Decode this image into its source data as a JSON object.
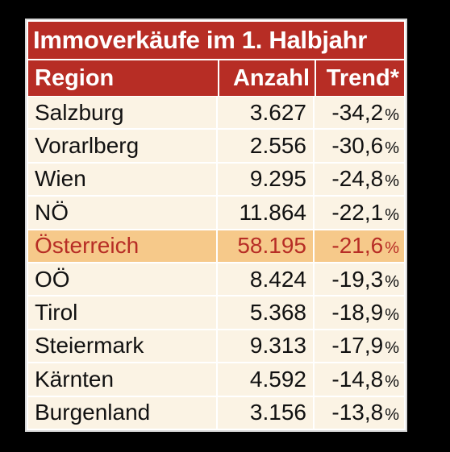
{
  "chart_data": {
    "type": "table",
    "title": "Immoverkäufe im 1. Halbjahr",
    "columns": [
      "Region",
      "Anzahl",
      "Trend*"
    ],
    "rows": [
      {
        "region": "Salzburg",
        "anzahl": "3.627",
        "trend": "-34,2",
        "unit": "%"
      },
      {
        "region": "Vorarlberg",
        "anzahl": "2.556",
        "trend": "-30,6",
        "unit": "%"
      },
      {
        "region": "Wien",
        "anzahl": "9.295",
        "trend": "-24,8",
        "unit": "%"
      },
      {
        "region": "NÖ",
        "anzahl": "11.864",
        "trend": "-22,1",
        "unit": "%"
      },
      {
        "region": "Österreich",
        "anzahl": "58.195",
        "trend": "-21,6",
        "unit": "%",
        "highlight": true
      },
      {
        "region": "OÖ",
        "anzahl": "8.424",
        "trend": "-19,3",
        "unit": "%"
      },
      {
        "region": "Tirol",
        "anzahl": "5.368",
        "trend": "-18,9",
        "unit": "%"
      },
      {
        "region": "Steiermark",
        "anzahl": "9.313",
        "trend": "-17,9",
        "unit": "%"
      },
      {
        "region": "Kärnten",
        "anzahl": "4.592",
        "trend": "-14,8",
        "unit": "%"
      },
      {
        "region": "Burgenland",
        "anzahl": "3.156",
        "trend": "-13,8",
        "unit": "%"
      }
    ]
  },
  "colors": {
    "header_bg": "#b72d25",
    "row_bg": "#fbf3e4",
    "highlight_bg": "#f6c98a",
    "highlight_text": "#b72d25"
  }
}
